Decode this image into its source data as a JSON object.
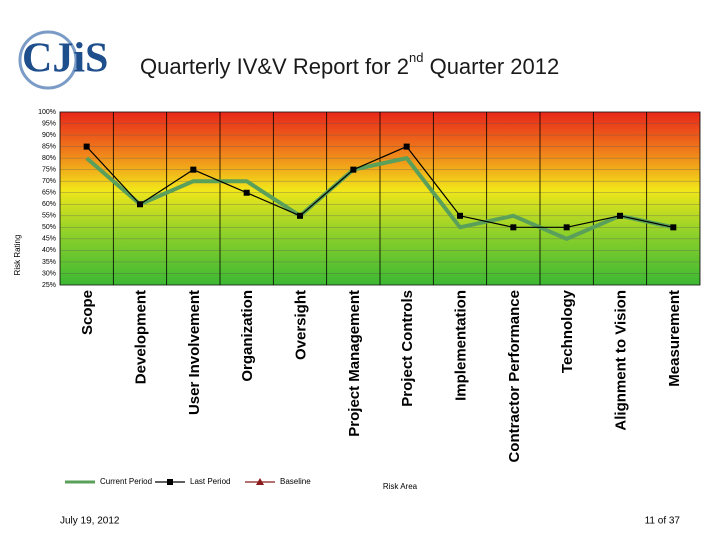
{
  "header": {
    "logo": "CJiS",
    "title_main": "Quarterly IV&V Report for 2",
    "title_sup": "nd",
    "title_end": " Quarter 2012"
  },
  "footer": {
    "date": "July 19, 2012",
    "page": "11 of 37"
  },
  "chart_data": {
    "type": "line",
    "ylabel": "Risk Rating",
    "xlabel": "Risk Area",
    "categories": [
      "Scope",
      "Development",
      "User Involvement",
      "Organization",
      "Oversight",
      "Project Management",
      "Project Controls",
      "Implementation",
      "Contractor Performance",
      "Technology",
      "Alignment to Vision",
      "Measurement"
    ],
    "series": [
      {
        "name": "Current Period",
        "color": "#5aa05a",
        "values": [
          80,
          60,
          70,
          70,
          55,
          75,
          80,
          50,
          55,
          45,
          55,
          50
        ]
      },
      {
        "name": "Last Period",
        "color": "#000000",
        "values": [
          85,
          60,
          75,
          65,
          55,
          75,
          85,
          55,
          50,
          50,
          55,
          50
        ]
      },
      {
        "name": "Baseline",
        "color": "#8b1a1a",
        "values": [
          null,
          null,
          null,
          null,
          null,
          null,
          null,
          null,
          null,
          null,
          null,
          null
        ]
      }
    ],
    "ylim": [
      25,
      100
    ],
    "yticks": [
      {
        "value": 25,
        "label": "25%"
      },
      {
        "value": 30,
        "label": "30%"
      },
      {
        "value": 35,
        "label": "35%"
      },
      {
        "value": 40,
        "label": "40%"
      },
      {
        "value": 45,
        "label": "45%"
      },
      {
        "value": 50,
        "label": "50%"
      },
      {
        "value": 55,
        "label": "55%"
      },
      {
        "value": 60,
        "label": "60%"
      },
      {
        "value": 65,
        "label": "65%"
      },
      {
        "value": 70,
        "label": "70%"
      },
      {
        "value": 75,
        "label": "75%"
      },
      {
        "value": 80,
        "label": "80%"
      },
      {
        "value": 85,
        "label": "85%"
      },
      {
        "value": 90,
        "label": "90%"
      },
      {
        "value": 95,
        "label": "95%"
      },
      {
        "value": 100,
        "label": "100%"
      }
    ],
    "grid": true
  }
}
